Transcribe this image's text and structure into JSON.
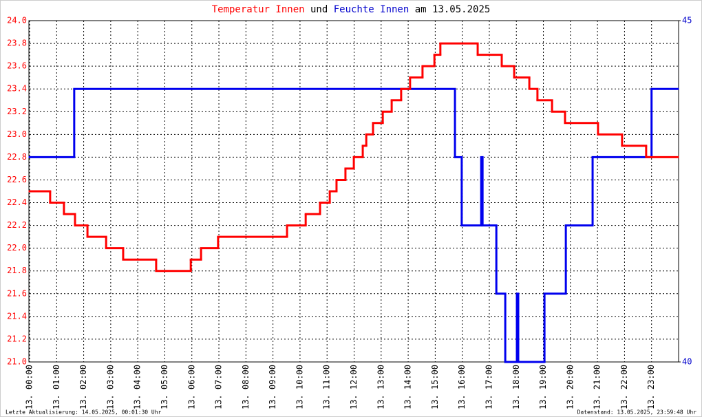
{
  "chart_data": {
    "type": "line",
    "drawstyle": "steps-post",
    "title": {
      "connector": "und",
      "suffix": "am 13.05.2025"
    },
    "footer": {
      "left": "Letzte Aktualisierung: 14.05.2025, 00:01:30 Uhr",
      "right": "Datenstand: 13.05.2025, 23:59:48 Uhr"
    },
    "xlim": [
      0,
      24
    ],
    "xticks": [
      {
        "value": 0,
        "label": "13. 00:00"
      },
      {
        "value": 1,
        "label": "13. 01:00"
      },
      {
        "value": 2,
        "label": "13. 02:00"
      },
      {
        "value": 3,
        "label": "13. 03:00"
      },
      {
        "value": 4,
        "label": "13. 04:00"
      },
      {
        "value": 5,
        "label": "13. 05:00"
      },
      {
        "value": 6,
        "label": "13. 06:00"
      },
      {
        "value": 7,
        "label": "13. 07:00"
      },
      {
        "value": 8,
        "label": "13. 08:00"
      },
      {
        "value": 9,
        "label": "13. 09:00"
      },
      {
        "value": 10,
        "label": "13. 10:00"
      },
      {
        "value": 11,
        "label": "13. 11:00"
      },
      {
        "value": 12,
        "label": "13. 12:00"
      },
      {
        "value": 13,
        "label": "13. 13:00"
      },
      {
        "value": 14,
        "label": "13. 14:00"
      },
      {
        "value": 15,
        "label": "13. 15:00"
      },
      {
        "value": 16,
        "label": "13. 16:00"
      },
      {
        "value": 17,
        "label": "13. 17:00"
      },
      {
        "value": 18,
        "label": "13. 18:00"
      },
      {
        "value": 19,
        "label": "13. 19:00"
      },
      {
        "value": 20,
        "label": "13. 20:00"
      },
      {
        "value": 21,
        "label": "13. 21:00"
      },
      {
        "value": 22,
        "label": "13. 22:00"
      },
      {
        "value": 23,
        "label": "13. 23:00"
      }
    ],
    "ylim": [
      21,
      24
    ],
    "yticks": [
      {
        "value": 21,
        "label": "21.0"
      },
      {
        "value": 21.2,
        "label": "21.2"
      },
      {
        "value": 21.4,
        "label": "21.4"
      },
      {
        "value": 21.6,
        "label": "21.6"
      },
      {
        "value": 21.8,
        "label": "21.8"
      },
      {
        "value": 22,
        "label": "22.0"
      },
      {
        "value": 22.2,
        "label": "22.2"
      },
      {
        "value": 22.4,
        "label": "22.4"
      },
      {
        "value": 22.6,
        "label": "22.6"
      },
      {
        "value": 22.8,
        "label": "22.8"
      },
      {
        "value": 23,
        "label": "23.0"
      },
      {
        "value": 23.2,
        "label": "23.2"
      },
      {
        "value": 23.4,
        "label": "23.4"
      },
      {
        "value": 23.6,
        "label": "23.6"
      },
      {
        "value": 23.8,
        "label": "23.8"
      },
      {
        "value": 24,
        "label": "24.0"
      }
    ],
    "y2lim": [
      40,
      45
    ],
    "y2ticks": [
      40,
      45
    ],
    "grid": true,
    "ytick_color": "#ff0000",
    "y2tick_color": "#0000cc",
    "series": [
      {
        "name": "Temperatur Innen",
        "color": "#ff0000",
        "axis": "y",
        "x": [
          0,
          0.76,
          1.27,
          1.68,
          2.14,
          2.83,
          3.46,
          4.68,
          5.96,
          6.34,
          6.97,
          9.52,
          10.21,
          10.74,
          11.1,
          11.35,
          11.68,
          11.99,
          12.32,
          12.45,
          12.7,
          13.06,
          13.39,
          13.74,
          14.07,
          14.53,
          14.97,
          15.19,
          16.57,
          17.46,
          17.92,
          18.48,
          18.78,
          19.32,
          19.8,
          21.02,
          21.91,
          22.8,
          23.97
        ],
        "values": [
          22.5,
          22.4,
          22.3,
          22.2,
          22.1,
          22.0,
          21.9,
          21.8,
          21.9,
          22.0,
          22.1,
          22.2,
          22.3,
          22.4,
          22.5,
          22.6,
          22.7,
          22.8,
          22.9,
          23.0,
          23.1,
          23.2,
          23.3,
          23.4,
          23.5,
          23.6,
          23.7,
          23.8,
          23.7,
          23.6,
          23.5,
          23.4,
          23.3,
          23.2,
          23.1,
          23.0,
          22.9,
          22.8,
          22.8
        ]
      },
      {
        "name": "Feuchte Innen",
        "color": "#0000ee",
        "axis": "y2",
        "x": [
          0,
          1.65,
          15.73,
          15.98,
          16.7,
          16.75,
          17.26,
          17.59,
          18.02,
          18.07,
          19.04,
          19.83,
          20.82,
          23.0,
          23.97
        ],
        "values": [
          43,
          44,
          43,
          42,
          43,
          42,
          41,
          40,
          41,
          40,
          41,
          42,
          43,
          44,
          44
        ]
      }
    ]
  }
}
